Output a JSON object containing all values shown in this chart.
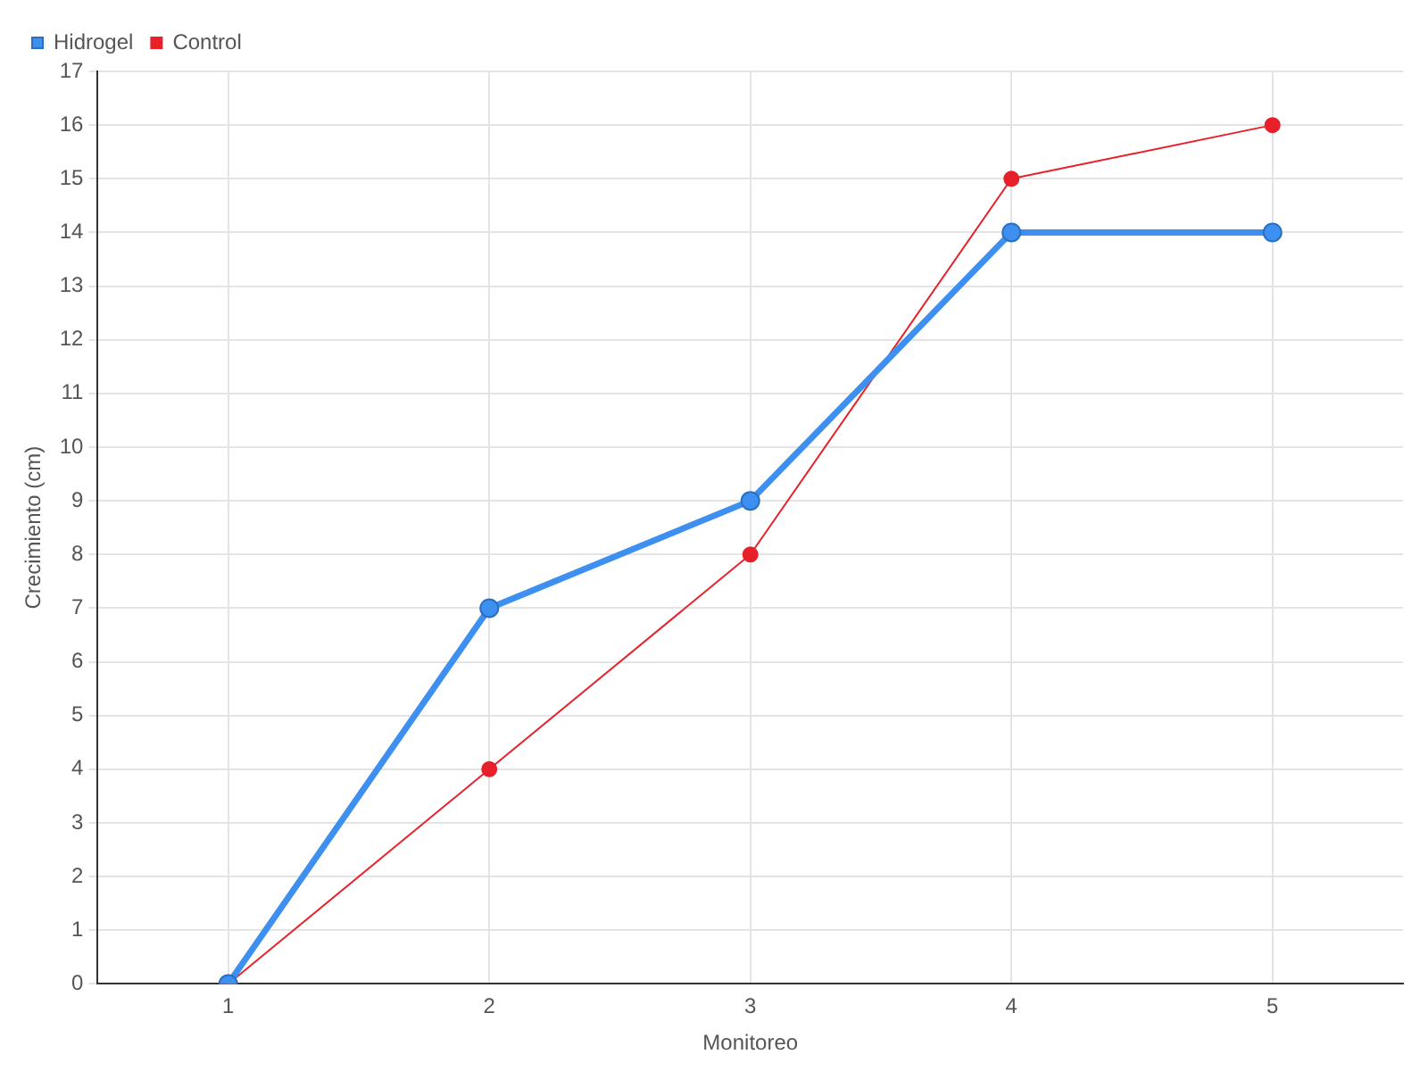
{
  "chart_data": {
    "type": "line",
    "xlabel": "Monitoreo",
    "ylabel": "Crecimiento (cm)",
    "categories": [
      "1",
      "2",
      "3",
      "4",
      "5"
    ],
    "series": [
      {
        "name": "Hidrogel",
        "color": "#3d8ff0",
        "values": [
          0,
          7,
          9,
          14,
          14
        ]
      },
      {
        "name": "Control",
        "color": "#e8202a",
        "values": [
          0,
          4,
          8,
          15,
          16
        ]
      }
    ],
    "ylim": [
      0,
      17
    ],
    "yticks": [
      0,
      1,
      2,
      3,
      4,
      5,
      6,
      7,
      8,
      9,
      10,
      11,
      12,
      13,
      14,
      15,
      16,
      17
    ],
    "grid": true,
    "legend": "top left",
    "marker": "circle",
    "line_style": "solid"
  }
}
